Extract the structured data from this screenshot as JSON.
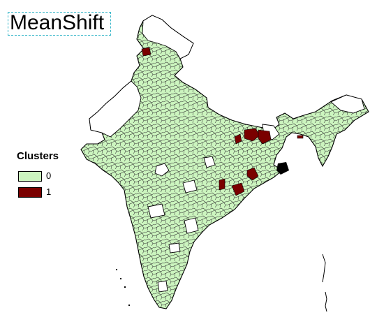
{
  "title": "MeanShift",
  "legend": {
    "title": "Clusters",
    "items": [
      {
        "label": "0",
        "color": "#ccf5bf"
      },
      {
        "label": "1",
        "color": "#7a0000"
      }
    ]
  },
  "colors": {
    "outline": "#000000",
    "no_data": "#ffffff"
  }
}
